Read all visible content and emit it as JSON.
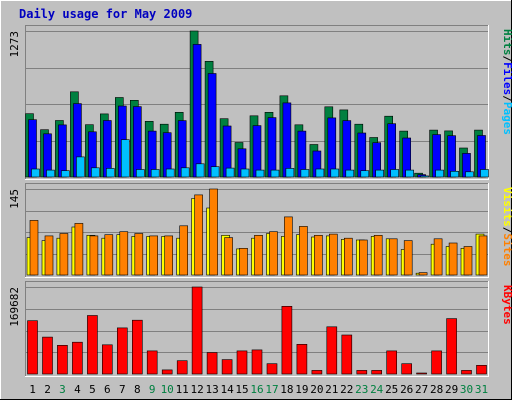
{
  "chart_data": {
    "type": "bar",
    "title": "Daily usage for May 2009",
    "categories": [
      "1",
      "2",
      "3",
      "4",
      "5",
      "6",
      "7",
      "8",
      "9",
      "10",
      "11",
      "12",
      "13",
      "14",
      "15",
      "16",
      "17",
      "18",
      "19",
      "20",
      "21",
      "22",
      "23",
      "24",
      "25",
      "26",
      "27",
      "28",
      "29",
      "30",
      "31"
    ],
    "weekend_days": [
      "3",
      "9",
      "10",
      "16",
      "17",
      "23",
      "24",
      "30",
      "31"
    ],
    "colors": {
      "background": "#C0C0C0",
      "title": "#0000C0",
      "hits": "#008040",
      "files": "#0000FF",
      "pages": "#00C0FF",
      "visits": "#FFFF00",
      "sites": "#FF8000",
      "kbytes": "#FF0000",
      "weekend_label": "#008040"
    },
    "panels": [
      {
        "id": "hits-files-pages",
        "max_label": "1273",
        "ymax": 1273,
        "legend": [
          {
            "label": "Hits",
            "color": "#008040"
          },
          {
            "label": "/",
            "color": "#000000"
          },
          {
            "label": "Files",
            "color": "#0000FF"
          },
          {
            "label": "/",
            "color": "#000000"
          },
          {
            "label": "Pages",
            "color": "#00C0FF"
          }
        ],
        "series": [
          {
            "name": "Hits",
            "color": "#008040",
            "values": [
              552,
              412,
              493,
              743,
              456,
              550,
              693,
              669,
              486,
              460,
              564,
              1273,
              1009,
              508,
              301,
              534,
              564,
              708,
              455,
              283,
              612,
              585,
              460,
              344,
              530,
              400,
              33,
              409,
              402,
              253,
              409
            ]
          },
          {
            "name": "Files",
            "color": "#0000FF",
            "values": [
              500,
              377,
              454,
              640,
              394,
              493,
              619,
              614,
              400,
              386,
              492,
              1156,
              902,
              445,
              246,
              448,
              518,
              646,
              400,
              227,
              515,
              492,
              384,
              299,
              465,
              340,
              21,
              370,
              360,
              206,
              362
            ]
          },
          {
            "name": "Pages",
            "color": "#00C0FF",
            "values": [
              70,
              60,
              55,
              175,
              80,
              75,
              325,
              65,
              65,
              70,
              80,
              115,
              90,
              78,
              70,
              60,
              60,
              75,
              65,
              70,
              70,
              60,
              55,
              60,
              65,
              60,
              10,
              60,
              50,
              45,
              65
            ]
          }
        ]
      },
      {
        "id": "visits-sites",
        "max_label": "145",
        "ymax": 145,
        "legend": [
          {
            "label": "Visits",
            "color": "#FFFF00"
          },
          {
            "label": "/",
            "color": "#000000"
          },
          {
            "label": "Sites",
            "color": "#FF8000"
          }
        ],
        "series": [
          {
            "name": "Visits",
            "color": "#FFFF00",
            "values": [
              63,
              58,
              62,
              81,
              67,
              62,
              68,
              65,
              65,
              65,
              62,
              129,
              113,
              67,
              44,
              62,
              70,
              65,
              68,
              64,
              66,
              60,
              59,
              65,
              61,
              43,
              3,
              52,
              48,
              45,
              69
            ]
          },
          {
            "name": "Sites",
            "color": "#FF8000",
            "values": [
              92,
              66,
              70,
              87,
              66,
              68,
              73,
              70,
              66,
              66,
              83,
              135,
              145,
              63,
              45,
              67,
              73,
              98,
              82,
              67,
              69,
              62,
              59,
              67,
              61,
              58,
              4,
              61,
              54,
              48,
              66
            ]
          }
        ]
      },
      {
        "id": "kbytes",
        "max_label": "169682",
        "ymax": 169682,
        "legend": [
          {
            "label": "KBytes",
            "color": "#FF0000"
          }
        ],
        "series": [
          {
            "name": "KBytes",
            "color": "#FF0000",
            "values": [
              104000,
              72000,
              56000,
              62000,
              114000,
              57000,
              90000,
              105000,
              45000,
              8000,
              26000,
              169682,
              42000,
              28000,
              45000,
              47000,
              20000,
              132000,
              58000,
              7000,
              92000,
              76000,
              7000,
              7000,
              45000,
              20000,
              2000,
              45000,
              108000,
              7000,
              17000
            ]
          }
        ]
      }
    ]
  }
}
